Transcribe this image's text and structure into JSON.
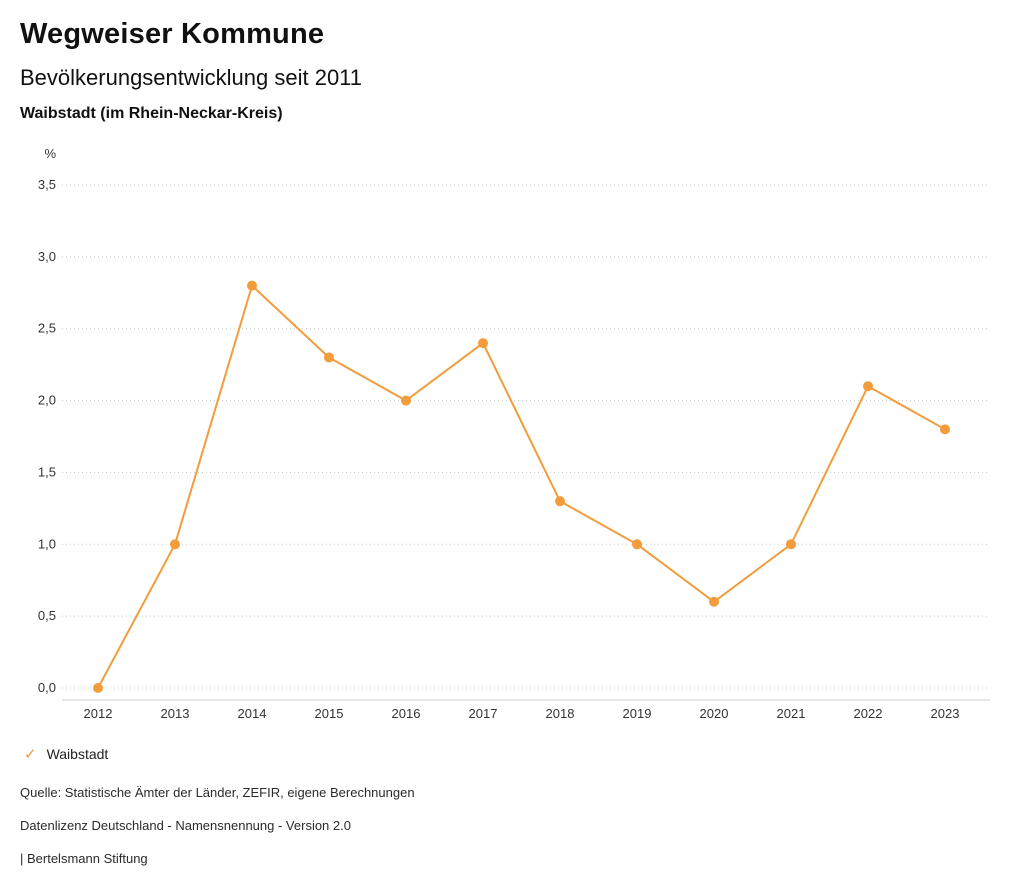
{
  "header": {
    "title": "Wegweiser Kommune",
    "subtitle": "Bevölkerungsentwicklung seit 2011",
    "location": "Waibstadt (im Rhein-Neckar-Kreis)"
  },
  "chart_data": {
    "type": "line",
    "title": "Bevölkerungsentwicklung seit 2011",
    "xlabel": "",
    "ylabel": "%",
    "x": [
      "2012",
      "2013",
      "2014",
      "2015",
      "2016",
      "2017",
      "2018",
      "2019",
      "2020",
      "2021",
      "2022",
      "2023"
    ],
    "series": [
      {
        "name": "Waibstadt",
        "values": [
          0.0,
          1.0,
          2.8,
          2.3,
          2.0,
          2.4,
          1.3,
          1.0,
          0.6,
          1.0,
          2.1,
          1.8
        ]
      }
    ],
    "ylim": [
      0.0,
      3.5
    ],
    "ytick_step": 0.5,
    "ytick_labels": [
      "0,0",
      "0,5",
      "1,0",
      "1,5",
      "2,0",
      "2,5",
      "3,0",
      "3,5"
    ],
    "grid": "horizontal-dotted",
    "legend_position": "bottom-left",
    "marker": "circle"
  },
  "legend": {
    "check_icon": "✓",
    "label": "Waibstadt"
  },
  "footer": {
    "source": "Quelle: Statistische Ämter der Länder, ZEFIR, eigene Berechnungen",
    "license": "Datenlizenz Deutschland - Namensnennung - Version 2.0",
    "attribution": "| Bertelsmann Stiftung"
  },
  "colors": {
    "accent": "#F39C3C",
    "grid": "#c6c6c6",
    "axis": "#cccccc",
    "tick_text": "#333333"
  }
}
